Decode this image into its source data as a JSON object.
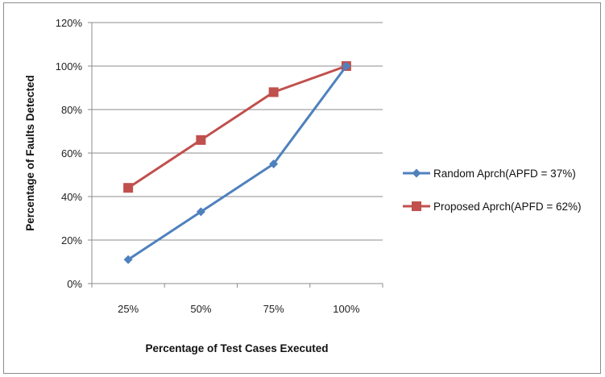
{
  "chart_data": {
    "type": "line",
    "categories": [
      "25%",
      "50%",
      "75%",
      "100%"
    ],
    "series": [
      {
        "name": "Random Aprch(APFD = 37%)",
        "values": [
          11,
          33,
          55,
          100
        ],
        "color": "#4F81BD",
        "marker": "diamond"
      },
      {
        "name": "Proposed Aprch(APFD = 62%)",
        "values": [
          44,
          66,
          88,
          100
        ],
        "color": "#C0504D",
        "marker": "square"
      }
    ],
    "y_ticks": [
      "0%",
      "20%",
      "40%",
      "60%",
      "80%",
      "100%",
      "120%"
    ],
    "ylim": [
      0,
      120
    ],
    "xlabel": "Percentage of Test Cases Executed",
    "ylabel": "Percentage of Faults Detected",
    "grid": true,
    "legend": "right"
  }
}
